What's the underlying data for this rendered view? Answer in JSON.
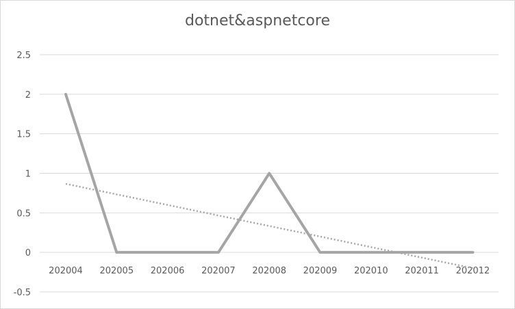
{
  "chart_data": {
    "type": "line",
    "title": "dotnet&aspnetcore",
    "xlabel": "",
    "ylabel": "",
    "categories": [
      "202004",
      "202005",
      "202006",
      "202007",
      "202008",
      "202009",
      "202010",
      "202011",
      "202012"
    ],
    "series": [
      {
        "values": [
          2,
          0,
          0,
          0,
          1,
          0,
          0,
          0,
          0
        ]
      }
    ],
    "trendline": {
      "type": "linear",
      "style": "dotted"
    },
    "ylim": [
      -0.5,
      2.5
    ],
    "yticks": [
      "-0.5",
      "0",
      "0.5",
      "1",
      "1.5",
      "2",
      "2.5"
    ],
    "grid": "horizontal",
    "legend": "none",
    "colors": {
      "series": "#a5a5a5",
      "trendline": "#a5a5a5",
      "gridline": "#d9d9d9",
      "text": "#595959",
      "border": "#d9d9d9"
    }
  }
}
